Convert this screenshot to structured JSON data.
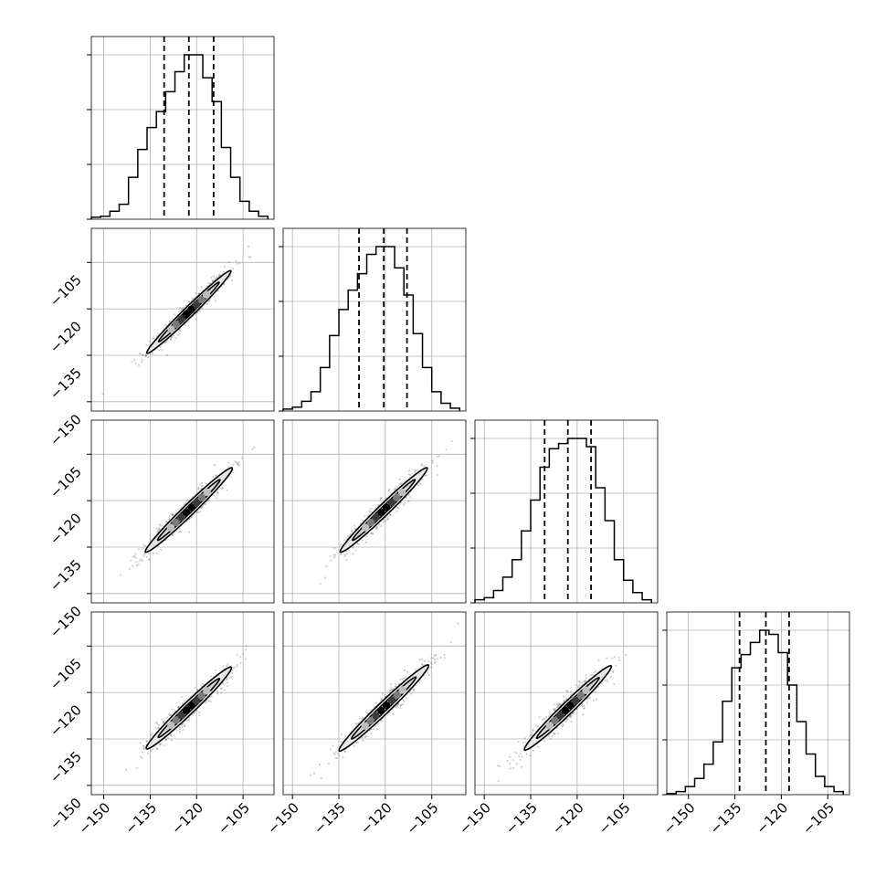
{
  "chart_data": {
    "type": "corner",
    "n_params": 4,
    "params": [
      "",
      "",
      "",
      ""
    ],
    "x_ticks": [
      "−150",
      "−135",
      "−120",
      "−105"
    ],
    "y_ticks": [
      "−105",
      "−120",
      "−135",
      "−150"
    ],
    "tick_values": [
      -150,
      -135,
      -120,
      -105
    ],
    "y_lim": [
      -153,
      -94
    ],
    "grid": true,
    "colors": {
      "line": "#000000",
      "grid": "#b0b0b0",
      "contour_fill": "#e6e6e6",
      "scatter": "#555555"
    },
    "marginals": [
      {
        "param_index": 0,
        "range": [
          -154,
          -95
        ],
        "bin_edges": [
          -154,
          -151,
          -148,
          -145,
          -142,
          -139,
          -136,
          -133,
          -130,
          -127,
          -124,
          -121,
          -118,
          -115,
          -112,
          -109,
          -106,
          -103,
          -100,
          -97
        ],
        "counts": [
          2,
          3,
          8,
          15,
          42,
          70,
          92,
          108,
          128,
          148,
          165,
          165,
          142,
          118,
          72,
          42,
          18,
          8,
          3
        ],
        "quantiles": [
          -130.5,
          -122.5,
          -114.5
        ]
      },
      {
        "param_index": 1,
        "range": [
          -153,
          -94
        ],
        "bin_edges": [
          -153,
          -150,
          -147,
          -144,
          -141,
          -138,
          -135,
          -132,
          -129,
          -126,
          -123,
          -120,
          -117,
          -114,
          -111,
          -108,
          -105,
          -102,
          -99,
          -96
        ],
        "counts": [
          2,
          4,
          10,
          20,
          45,
          78,
          105,
          125,
          142,
          162,
          170,
          170,
          148,
          120,
          80,
          45,
          20,
          8,
          3
        ],
        "quantiles": [
          -128.5,
          -120.5,
          -113
        ]
      },
      {
        "param_index": 2,
        "range": [
          -153,
          -94
        ],
        "bin_edges": [
          -153,
          -150,
          -147,
          -144,
          -141,
          -138,
          -135,
          -132,
          -129,
          -126,
          -123,
          -120,
          -117,
          -114,
          -111,
          -108,
          -105,
          -102,
          -99,
          -96
        ],
        "counts": [
          3,
          5,
          12,
          25,
          42,
          70,
          100,
          132,
          150,
          155,
          160,
          160,
          152,
          112,
          80,
          42,
          22,
          10,
          3
        ],
        "quantiles": [
          -130.5,
          -123,
          -115.5
        ]
      },
      {
        "param_index": 3,
        "range": [
          -157,
          -98
        ],
        "bin_edges": [
          -157,
          -154,
          -151,
          -148,
          -145,
          -142,
          -139,
          -136,
          -133,
          -130,
          -127,
          -124,
          -121,
          -118,
          -115,
          -112,
          -109,
          -106,
          -103,
          -100
        ],
        "counts": [
          1,
          3,
          8,
          16,
          30,
          52,
          92,
          125,
          138,
          150,
          162,
          158,
          140,
          108,
          72,
          40,
          18,
          8,
          3
        ],
        "quantiles": [
          -133.5,
          -125,
          -117.5
        ]
      }
    ],
    "pairs": [
      {
        "x_param": 0,
        "y_param": 1,
        "x_range": [
          -154,
          -95
        ],
        "mean": [
          -122.5,
          -121
        ],
        "slope": 0.98,
        "half_length": 19,
        "half_width": 1.6
      },
      {
        "x_param": 0,
        "y_param": 2,
        "x_range": [
          -154,
          -95
        ],
        "mean": [
          -122.5,
          -123
        ],
        "slope": 0.97,
        "half_length": 19.5,
        "half_width": 1.8
      },
      {
        "x_param": 1,
        "y_param": 2,
        "x_range": [
          -153,
          -94
        ],
        "mean": [
          -120.5,
          -123
        ],
        "slope": 0.97,
        "half_length": 19.5,
        "half_width": 1.8
      },
      {
        "x_param": 0,
        "y_param": 3,
        "x_range": [
          -154,
          -95
        ],
        "mean": [
          -122.5,
          -125
        ],
        "slope": 0.96,
        "half_length": 19,
        "half_width": 1.9
      },
      {
        "x_param": 1,
        "y_param": 3,
        "x_range": [
          -153,
          -94
        ],
        "mean": [
          -120.5,
          -125
        ],
        "slope": 0.96,
        "half_length": 20,
        "half_width": 1.9
      },
      {
        "x_param": 2,
        "y_param": 3,
        "x_range": [
          -153,
          -94
        ],
        "mean": [
          -123,
          -125
        ],
        "slope": 0.97,
        "half_length": 19.5,
        "half_width": 1.9
      }
    ]
  }
}
